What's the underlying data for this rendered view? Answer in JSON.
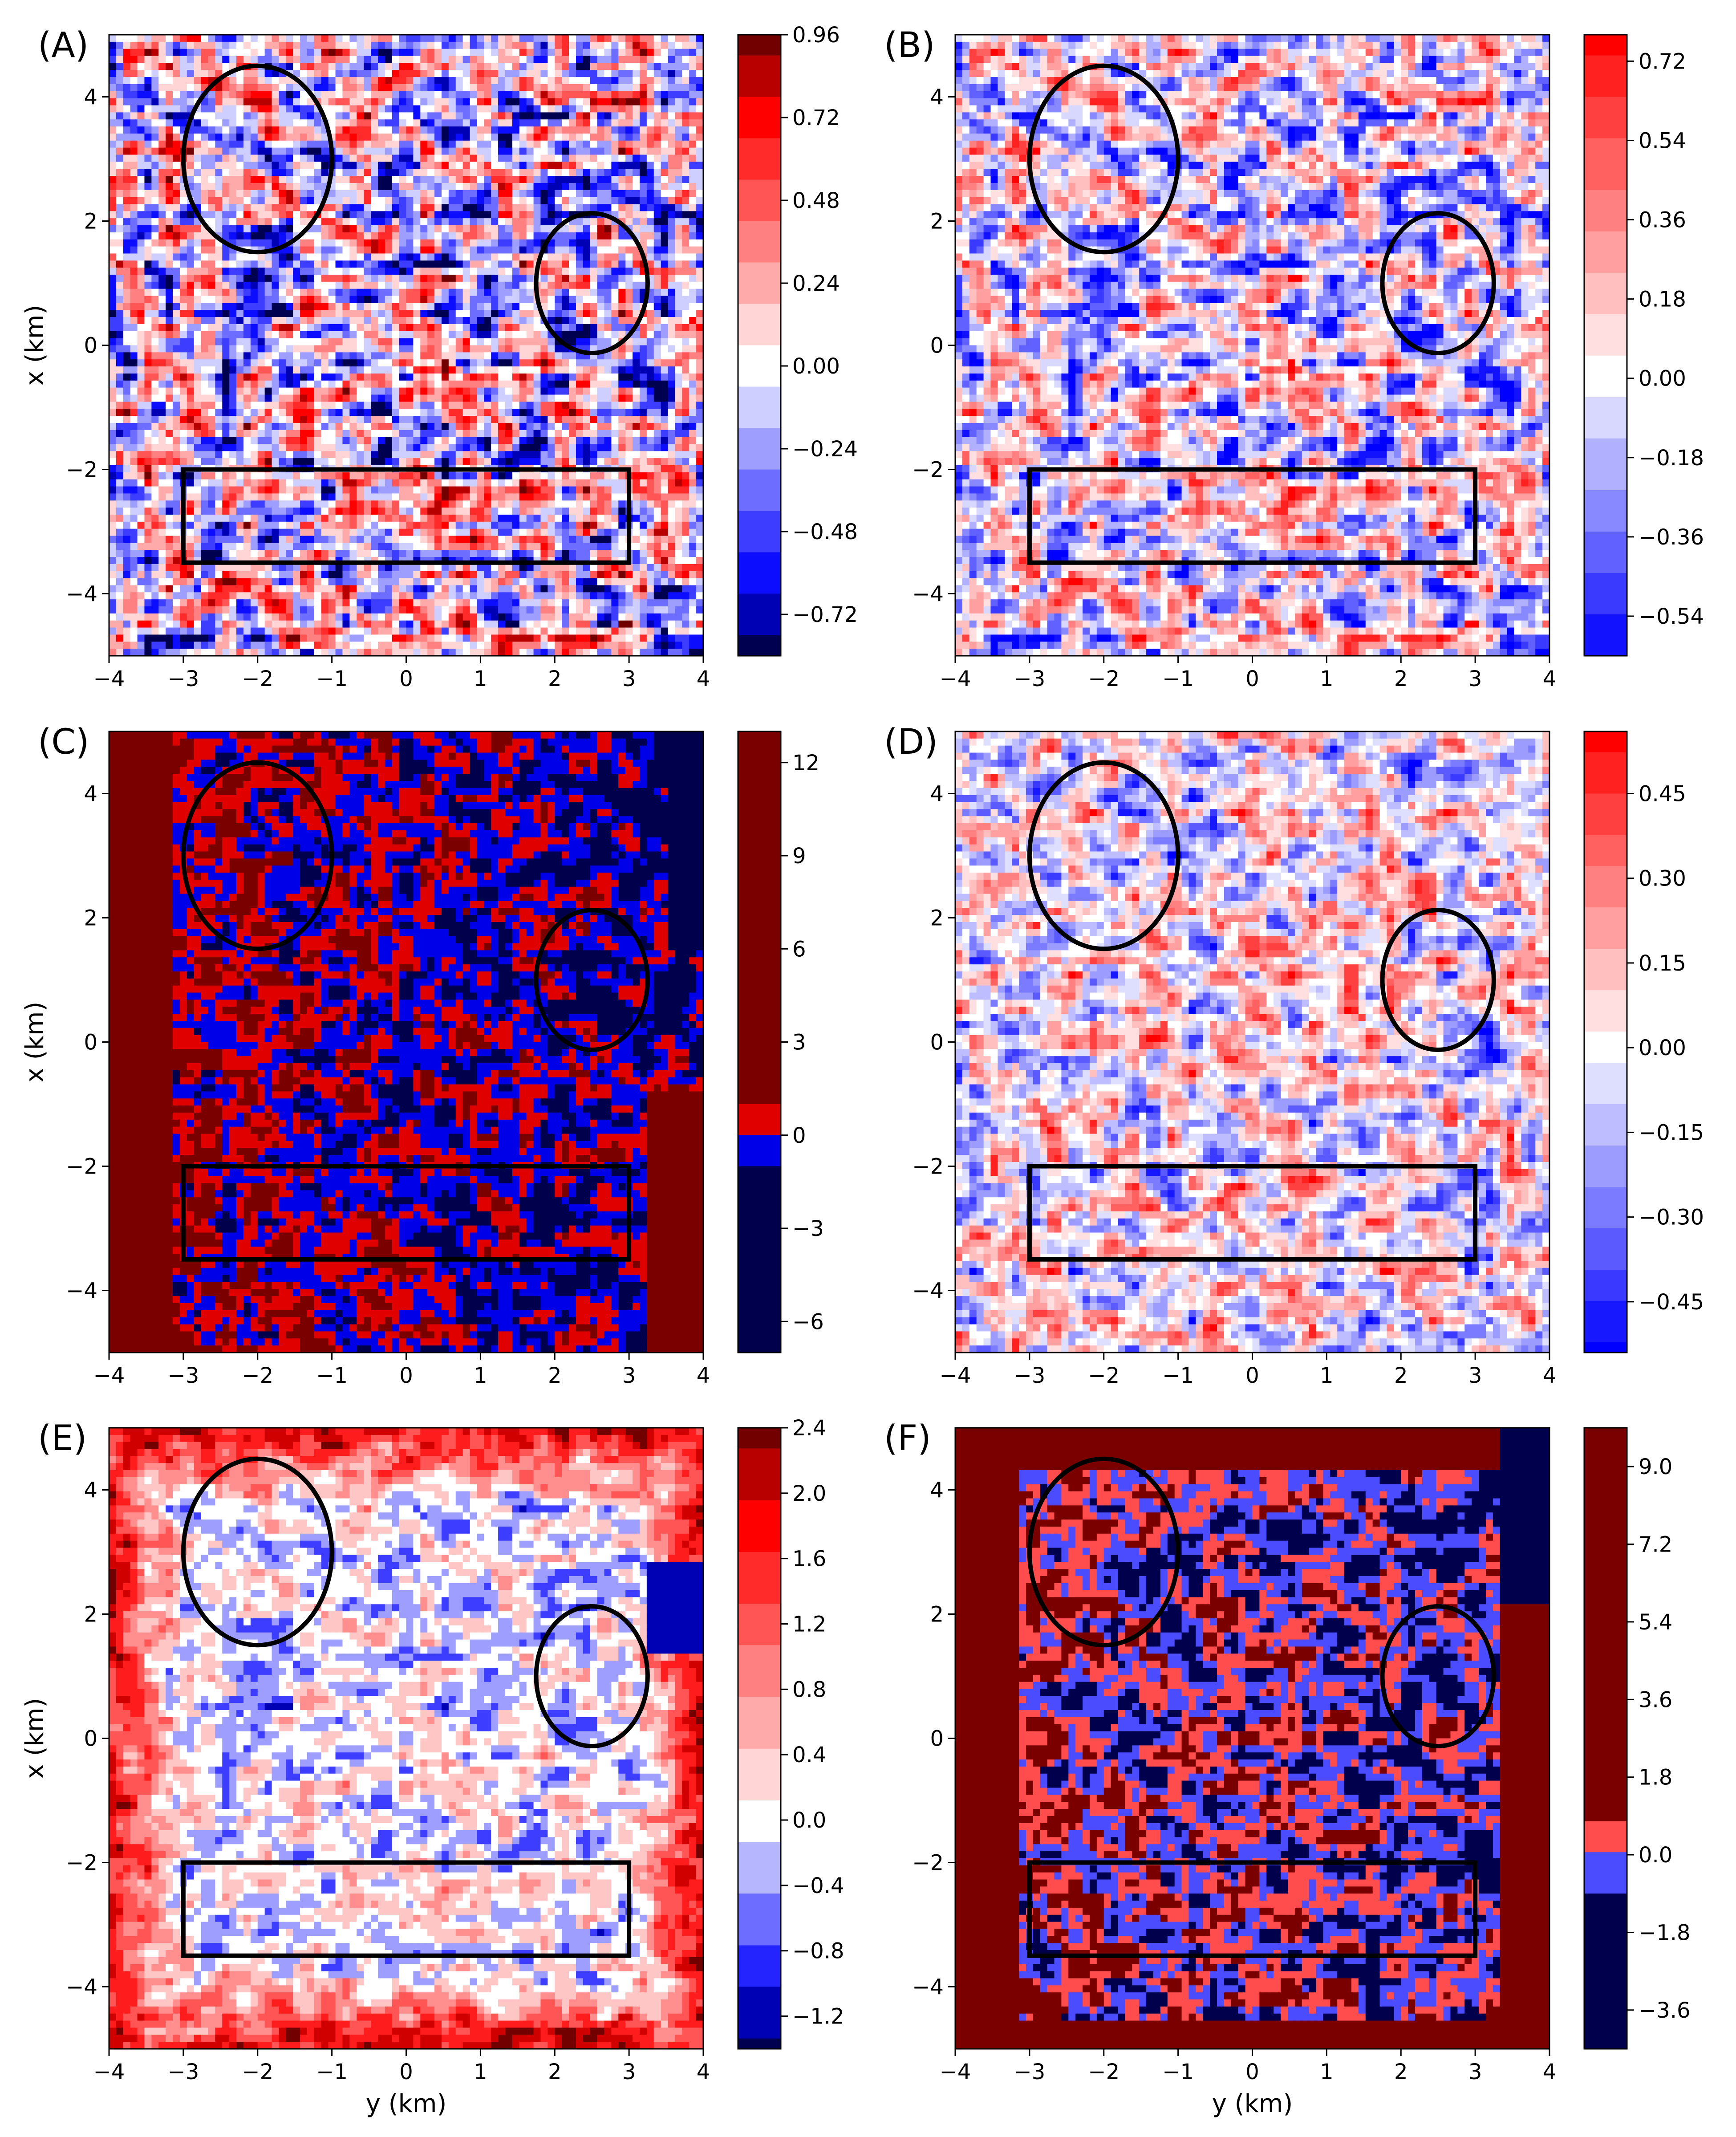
{
  "colors": {
    "pos": "#e00000",
    "neg": "#0000e8",
    "darkred": "#7a0000",
    "navy": "#00004c",
    "white": "#ffffff"
  },
  "chart_data": [
    {
      "id": "A",
      "type": "heatmap",
      "panel_label": "(A)",
      "xlabel": "",
      "ylabel": "x (km)",
      "x_ticks": [
        "−4",
        "−3",
        "−2",
        "−1",
        "0",
        "1",
        "2",
        "3",
        "4"
      ],
      "y_ticks": [
        "−4",
        "−2",
        "0",
        "2",
        "4"
      ],
      "xlim": [
        -4,
        4
      ],
      "ylim": [
        -5,
        5
      ],
      "field_seed": 11,
      "field_style": "random",
      "clim": [
        -0.84,
        0.96
      ],
      "colorbar_ticks": [
        "0.96",
        "0.72",
        "0.48",
        "0.24",
        "0.00",
        "−0.24",
        "−0.48",
        "−0.72"
      ],
      "colorbar_tick_values": [
        0.96,
        0.72,
        0.48,
        0.24,
        0.0,
        -0.24,
        -0.48,
        -0.72
      ],
      "colorbar_style": "seismic",
      "annotations": [
        {
          "shape": "ellipse",
          "y_center": -2.0,
          "x_center": 3.0,
          "y_radius": 1.0,
          "x_radius": 1.0
        },
        {
          "shape": "ellipse",
          "y_center": 2.5,
          "x_center": 1.0,
          "y_radius": 0.75,
          "x_radius": 0.75
        },
        {
          "shape": "rectangle",
          "y_min": -3.0,
          "y_max": 3.0,
          "x_min": -3.5,
          "x_max": -2.0
        }
      ]
    },
    {
      "id": "B",
      "type": "heatmap",
      "panel_label": "(B)",
      "xlabel": "",
      "ylabel": "",
      "x_ticks": [
        "−4",
        "−3",
        "−2",
        "−1",
        "0",
        "1",
        "2",
        "3",
        "4"
      ],
      "y_ticks": [
        "−4",
        "−2",
        "0",
        "2",
        "4"
      ],
      "xlim": [
        -4,
        4
      ],
      "ylim": [
        -5,
        5
      ],
      "field_seed": 11,
      "field_style": "random",
      "clim": [
        -0.63,
        0.78
      ],
      "colorbar_ticks": [
        "0.72",
        "0.54",
        "0.36",
        "0.18",
        "0.00",
        "−0.18",
        "−0.36",
        "−0.54"
      ],
      "colorbar_tick_values": [
        0.72,
        0.54,
        0.36,
        0.18,
        0.0,
        -0.18,
        -0.36,
        -0.54
      ],
      "colorbar_style": "bwr",
      "annotations": [
        {
          "shape": "ellipse",
          "y_center": -2.0,
          "x_center": 3.0,
          "y_radius": 1.0,
          "x_radius": 1.0
        },
        {
          "shape": "ellipse",
          "y_center": 2.5,
          "x_center": 1.0,
          "y_radius": 0.75,
          "x_radius": 0.75
        },
        {
          "shape": "rectangle",
          "y_min": -3.0,
          "y_max": 3.0,
          "x_min": -3.5,
          "x_max": -2.0
        }
      ]
    },
    {
      "id": "C",
      "type": "heatmap",
      "panel_label": "(C)",
      "xlabel": "",
      "ylabel": "x (km)",
      "x_ticks": [
        "−4",
        "−3",
        "−2",
        "−1",
        "0",
        "1",
        "2",
        "3",
        "4"
      ],
      "y_ticks": [
        "−4",
        "−2",
        "0",
        "2",
        "4"
      ],
      "xlim": [
        -4,
        4
      ],
      "ylim": [
        -5,
        5
      ],
      "field_seed": 23,
      "field_style": "binary_left_border",
      "clim": [
        -7.0,
        13.0
      ],
      "colorbar_ticks": [
        "12",
        "9",
        "6",
        "3",
        "0",
        "−3",
        "−6"
      ],
      "colorbar_tick_values": [
        12,
        9,
        6,
        3,
        0,
        -3,
        -6
      ],
      "colorbar_style": "binary",
      "annotations": [
        {
          "shape": "ellipse",
          "y_center": -2.0,
          "x_center": 3.0,
          "y_radius": 1.0,
          "x_radius": 1.0
        },
        {
          "shape": "ellipse",
          "y_center": 2.5,
          "x_center": 1.0,
          "y_radius": 0.75,
          "x_radius": 0.75
        },
        {
          "shape": "rectangle",
          "y_min": -3.0,
          "y_max": 3.0,
          "x_min": -3.5,
          "x_max": -2.0
        }
      ]
    },
    {
      "id": "D",
      "type": "heatmap",
      "panel_label": "(D)",
      "xlabel": "",
      "ylabel": "",
      "x_ticks": [
        "−4",
        "−3",
        "−2",
        "−1",
        "0",
        "1",
        "2",
        "3",
        "4"
      ],
      "y_ticks": [
        "−4",
        "−2",
        "0",
        "2",
        "4"
      ],
      "xlim": [
        -4,
        4
      ],
      "ylim": [
        -5,
        5
      ],
      "field_seed": 37,
      "field_style": "smooth",
      "clim": [
        -0.54,
        0.56
      ],
      "colorbar_ticks": [
        "0.45",
        "0.30",
        "0.15",
        "0.00",
        "−0.15",
        "−0.30",
        "−0.45"
      ],
      "colorbar_tick_values": [
        0.45,
        0.3,
        0.15,
        0.0,
        -0.15,
        -0.3,
        -0.45
      ],
      "colorbar_style": "bwr",
      "annotations": [
        {
          "shape": "ellipse",
          "y_center": -2.0,
          "x_center": 3.0,
          "y_radius": 1.0,
          "x_radius": 1.0
        },
        {
          "shape": "ellipse",
          "y_center": 2.5,
          "x_center": 1.0,
          "y_radius": 0.75,
          "x_radius": 0.75
        },
        {
          "shape": "rectangle",
          "y_min": -3.0,
          "y_max": 3.0,
          "x_min": -3.5,
          "x_max": -2.0
        }
      ]
    },
    {
      "id": "E",
      "type": "heatmap",
      "panel_label": "(E)",
      "xlabel": "y (km)",
      "ylabel": "x (km)",
      "x_ticks": [
        "−4",
        "−3",
        "−2",
        "−1",
        "0",
        "1",
        "2",
        "3",
        "4"
      ],
      "y_ticks": [
        "−4",
        "−2",
        "0",
        "2",
        "4"
      ],
      "xlim": [
        -4,
        4
      ],
      "ylim": [
        -5,
        5
      ],
      "field_seed": 11,
      "field_style": "red_border",
      "clim": [
        -1.4,
        2.4
      ],
      "colorbar_ticks": [
        "2.4",
        "2.0",
        "1.6",
        "1.2",
        "0.8",
        "0.4",
        "0.0",
        "−0.4",
        "−0.8",
        "−1.2"
      ],
      "colorbar_tick_values": [
        2.4,
        2.0,
        1.6,
        1.2,
        0.8,
        0.4,
        0.0,
        -0.4,
        -0.8,
        -1.2
      ],
      "colorbar_style": "seismic_e",
      "annotations": [
        {
          "shape": "ellipse",
          "y_center": -2.0,
          "x_center": 3.0,
          "y_radius": 1.0,
          "x_radius": 1.0
        },
        {
          "shape": "ellipse",
          "y_center": 2.5,
          "x_center": 1.0,
          "y_radius": 0.75,
          "x_radius": 0.75
        },
        {
          "shape": "rectangle",
          "y_min": -3.0,
          "y_max": 3.0,
          "x_min": -3.5,
          "x_max": -2.0
        }
      ]
    },
    {
      "id": "F",
      "type": "heatmap",
      "panel_label": "(F)",
      "xlabel": "y (km)",
      "ylabel": "",
      "x_ticks": [
        "−4",
        "−3",
        "−2",
        "−1",
        "0",
        "1",
        "2",
        "3",
        "4"
      ],
      "y_ticks": [
        "−4",
        "−2",
        "0",
        "2",
        "4"
      ],
      "xlim": [
        -4,
        4
      ],
      "ylim": [
        -5,
        5
      ],
      "field_seed": 51,
      "field_style": "binary_full_border",
      "clim": [
        -4.5,
        9.9
      ],
      "colorbar_ticks": [
        "9.0",
        "7.2",
        "5.4",
        "3.6",
        "1.8",
        "0.0",
        "−1.8",
        "−3.6"
      ],
      "colorbar_tick_values": [
        9.0,
        7.2,
        5.4,
        3.6,
        1.8,
        0.0,
        -1.8,
        -3.6
      ],
      "colorbar_style": "binary_light",
      "annotations": [
        {
          "shape": "ellipse",
          "y_center": -2.0,
          "x_center": 3.0,
          "y_radius": 1.0,
          "x_radius": 1.0
        },
        {
          "shape": "ellipse",
          "y_center": 2.5,
          "x_center": 1.0,
          "y_radius": 0.75,
          "x_radius": 0.75
        },
        {
          "shape": "rectangle",
          "y_min": -3.0,
          "y_max": 3.0,
          "x_min": -3.5,
          "x_max": -2.0
        }
      ]
    }
  ]
}
